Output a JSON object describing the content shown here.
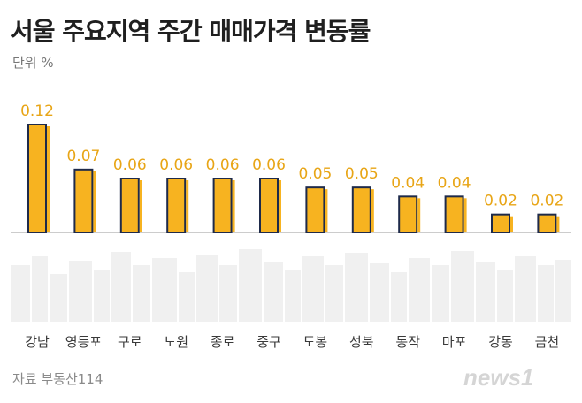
{
  "title": "서울 주요지역 주간 매매가격 변동률",
  "unit_label": "단위 %",
  "source": "자료 부동산114",
  "logo_text": "news1",
  "colors": {
    "bar_fill": "#F7B320",
    "bar_outline": "#1E2A4A",
    "value_label": "#E8A516",
    "skyline": "#F0F0F0",
    "axis_line": "#BBBBBB",
    "category_label": "#3A3A3A"
  },
  "chart_data": {
    "type": "bar",
    "title": "서울 주요지역 주간 매매가격 변동률",
    "ylabel": "단위 %",
    "categories": [
      "강남",
      "영등포",
      "구로",
      "노원",
      "종로",
      "중구",
      "도봉",
      "성북",
      "동작",
      "마포",
      "강동",
      "금천"
    ],
    "values": [
      0.12,
      0.07,
      0.06,
      0.06,
      0.06,
      0.06,
      0.05,
      0.05,
      0.04,
      0.04,
      0.02,
      0.02
    ],
    "value_labels": [
      "0.12",
      "0.07",
      "0.06",
      "0.06",
      "0.06",
      "0.06",
      "0.05",
      "0.05",
      "0.04",
      "0.04",
      "0.02",
      "0.02"
    ],
    "ylim": [
      0,
      0.12
    ],
    "grid": false,
    "legend": "none"
  }
}
